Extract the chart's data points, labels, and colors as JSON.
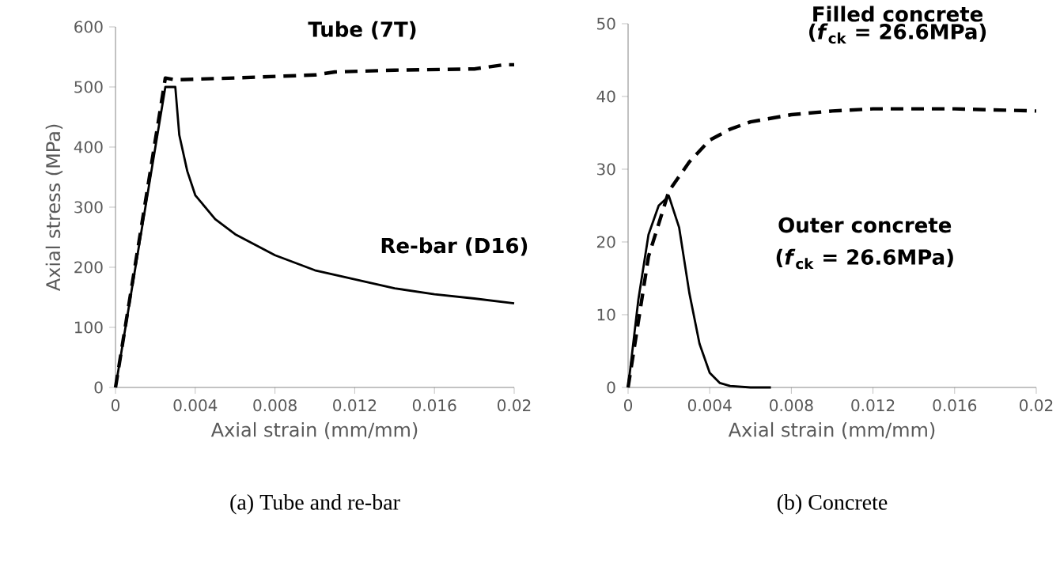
{
  "chart_data": [
    {
      "type": "line",
      "title": "(a)  Tube and re-bar",
      "xlabel": "Axial strain (mm/mm)",
      "ylabel": "Axial stress (MPa)",
      "xlim": [
        0,
        0.02
      ],
      "xticks": [
        0,
        0.004,
        0.008,
        0.012,
        0.016,
        0.02
      ],
      "ylim": [
        0,
        600
      ],
      "yticks": [
        0,
        100,
        200,
        300,
        400,
        500,
        600
      ],
      "annotations": [
        "**Tube (7T)**",
        "**Re-bar (D16)**"
      ],
      "series": [
        {
          "color": "#000000",
          "line_style": "dashed",
          "x": [
            0,
            0.0025,
            0.003,
            0.006,
            0.01,
            0.011,
            0.014,
            0.018,
            0.0195,
            0.02
          ],
          "values": [
            0,
            515,
            512,
            515,
            520,
            525,
            528,
            530,
            537,
            537
          ]
        },
        {
          "color": "#000000",
          "line_style": "solid",
          "x": [
            0,
            0.0025,
            0.003,
            0.0032,
            0.0036,
            0.004,
            0.005,
            0.006,
            0.008,
            0.01,
            0.012,
            0.014,
            0.016,
            0.018,
            0.02
          ],
          "values": [
            0,
            500,
            500,
            420,
            360,
            320,
            280,
            255,
            220,
            195,
            180,
            165,
            155,
            148,
            140
          ]
        }
      ]
    },
    {
      "type": "line",
      "title": "(b)  Concrete",
      "xlabel": "Axial strain (mm/mm)",
      "xlim": [
        0,
        0.02
      ],
      "xticks": [
        0,
        0.004,
        0.008,
        0.012,
        0.016,
        0.02
      ],
      "ylim": [
        0,
        50
      ],
      "yticks": [
        0,
        10,
        20,
        30,
        40,
        50
      ],
      "annotations": [
        "**Filled concrete**",
        "**(*f*$_{ck}$ = 26.6MPa)**",
        "**Outer concrete**",
        "**(*f*$_{ck}$ = 26.6MPa)**"
      ],
      "series": [
        {
          "color": "#000000",
          "line_style": "dashed",
          "x": [
            0,
            0.001,
            0.002,
            0.003,
            0.004,
            0.005,
            0.006,
            0.008,
            0.01,
            0.012,
            0.016,
            0.02
          ],
          "values": [
            0,
            18,
            27,
            31,
            34,
            35.5,
            36.5,
            37.5,
            38,
            38.3,
            38.3,
            38
          ]
        },
        {
          "color": "#000000",
          "line_style": "solid",
          "x": [
            0,
            0.0005,
            0.001,
            0.0015,
            0.002,
            0.0025,
            0.003,
            0.0035,
            0.004,
            0.0045,
            0.005,
            0.006,
            0.007
          ],
          "values": [
            0,
            12,
            21,
            25,
            26.3,
            22,
            13,
            6,
            2,
            0.6,
            0.2,
            0,
            0
          ]
        }
      ]
    }
  ]
}
